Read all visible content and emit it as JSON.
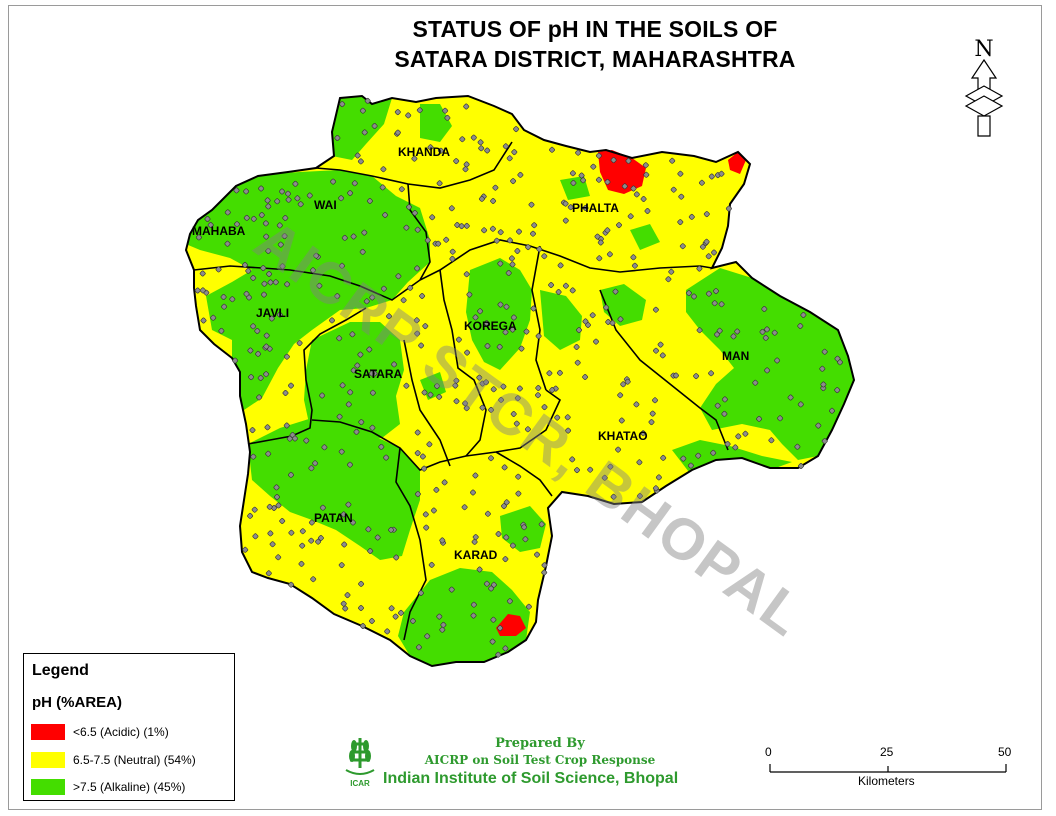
{
  "title": {
    "line1": "STATUS OF pH IN THE SOILS OF",
    "line2": "SATARA DISTRICT, MAHARASHTRA"
  },
  "north_arrow": {
    "label": "N",
    "icon": "north-arrow-icon"
  },
  "watermark": "AICRP STCR, BHOPAL",
  "talukas": [
    {
      "name": "KHANDA",
      "color": "mixed"
    },
    {
      "name": "WAI",
      "color": "mixed"
    },
    {
      "name": "MAHABA",
      "color": "mixed"
    },
    {
      "name": "PHALTA",
      "color": "mixed"
    },
    {
      "name": "JAVLI",
      "color": "mixed"
    },
    {
      "name": "KOREGA",
      "color": "mixed"
    },
    {
      "name": "SATARA",
      "color": "mixed"
    },
    {
      "name": "MAN",
      "color": "mixed"
    },
    {
      "name": "KHATAO",
      "color": "mixed"
    },
    {
      "name": "PATAN",
      "color": "mixed"
    },
    {
      "name": "KARAD",
      "color": "mixed"
    }
  ],
  "legend": {
    "title": "Legend",
    "subtitle": "pH  (%AREA)",
    "items": [
      {
        "label": "<6.5 (Acidic) (1%)",
        "color": "#ff0000"
      },
      {
        "label": "6.5-7.5 (Neutral) (54%)",
        "color": "#ffff00"
      },
      {
        "label": ">7.5 (Alkaline) (45%)",
        "color": "#44dd00"
      }
    ]
  },
  "credits": {
    "prepared_by": "Prepared By",
    "program": "AICRP on Soil Test Crop Response",
    "institute": "Indian Institute of Soil Science, Bhopal",
    "logo_text": "ICAR"
  },
  "scale_bar": {
    "ticks": [
      "0",
      "25",
      "50"
    ],
    "unit": "Kilometers"
  },
  "colors": {
    "acidic": "#ff0000",
    "neutral": "#ffff00",
    "alkaline": "#44dd00",
    "sample_point": "#8c8c8c",
    "credit_green": "#2e9a2e"
  }
}
